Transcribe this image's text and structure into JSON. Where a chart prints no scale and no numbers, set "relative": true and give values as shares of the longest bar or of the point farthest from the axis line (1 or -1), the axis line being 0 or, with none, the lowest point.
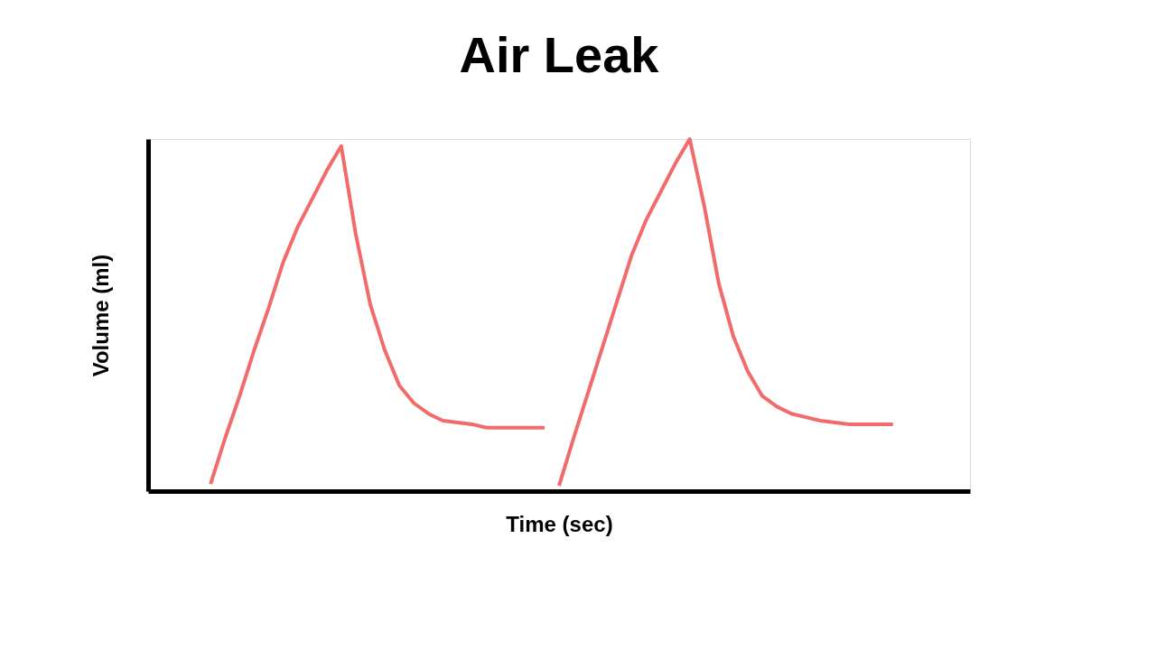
{
  "chart_data": {
    "type": "line",
    "title": "Air Leak",
    "xlabel": "Time (sec)",
    "ylabel": "Volume (ml)",
    "relative": true,
    "grid": false,
    "legend": false,
    "marker": "none",
    "line_style": "solid",
    "categories": [
      null,
      null,
      null,
      null,
      null,
      null,
      null,
      null,
      null,
      null,
      null,
      null,
      null,
      null,
      null,
      null,
      null,
      null,
      null,
      null,
      null,
      null,
      null,
      null,
      null,
      null,
      null,
      null,
      null,
      null,
      null,
      null,
      null,
      null,
      null,
      null,
      null,
      null,
      null,
      null,
      null,
      null,
      null,
      null,
      null,
      null,
      null,
      null,
      null,
      null,
      null,
      null,
      null,
      null,
      null,
      null,
      null
    ],
    "series": [
      {
        "color": "#f26b6b",
        "values": [
          null,
          null,
          null,
          null,
          0.02,
          0.15,
          0.27,
          0.4,
          0.52,
          0.65,
          0.75,
          0.83,
          0.91,
          0.98,
          0.73,
          0.53,
          0.4,
          0.3,
          0.25,
          0.22,
          0.2,
          0.195,
          0.19,
          0.18,
          0.18,
          0.18,
          0.18,
          0.18,
          null,
          null,
          null,
          null,
          null,
          null,
          null,
          null,
          null,
          null,
          null,
          null,
          null,
          null,
          null,
          null,
          null,
          null,
          null,
          null,
          null,
          null,
          null,
          null,
          null,
          null,
          null,
          null,
          null
        ]
      },
      {
        "color": "#f26b6b",
        "values": [
          null,
          null,
          null,
          null,
          null,
          null,
          null,
          null,
          null,
          null,
          null,
          null,
          null,
          null,
          null,
          null,
          null,
          null,
          null,
          null,
          null,
          null,
          null,
          null,
          null,
          null,
          null,
          null,
          0.015,
          0.15,
          0.28,
          0.41,
          0.54,
          0.67,
          0.77,
          0.85,
          0.93,
          1.0,
          0.81,
          0.59,
          0.44,
          0.34,
          0.27,
          0.24,
          0.22,
          0.21,
          0.2,
          0.195,
          0.19,
          0.19,
          0.19,
          0.19,
          null,
          null,
          null,
          null,
          null
        ]
      }
    ]
  }
}
